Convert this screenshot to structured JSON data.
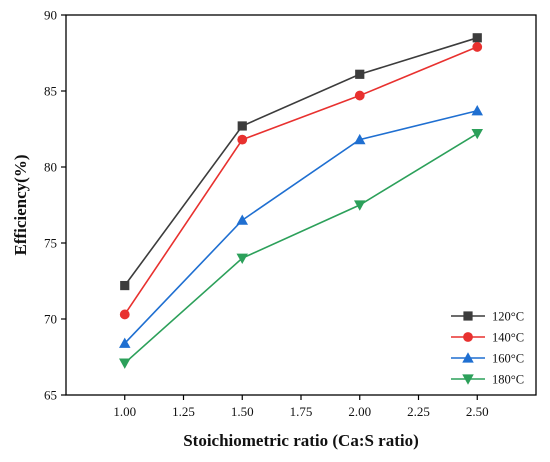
{
  "chart_data": {
    "type": "line",
    "title": "",
    "xlabel": "Stoichiometric ratio (Ca:S ratio)",
    "ylabel": "Efficiency(%)",
    "xlim": [
      0.75,
      2.75
    ],
    "ylim": [
      65,
      90
    ],
    "xticks": [
      1.0,
      1.25,
      1.5,
      1.75,
      2.0,
      2.25,
      2.5
    ],
    "xtick_labels": [
      "1.00",
      "1.25",
      "1.50",
      "1.75",
      "2.00",
      "2.25",
      "2.50"
    ],
    "yticks": [
      65,
      70,
      75,
      80,
      85,
      90
    ],
    "ytick_labels": [
      "65",
      "70",
      "75",
      "80",
      "85",
      "90"
    ],
    "grid": false,
    "legend_position": "bottom-right",
    "x": [
      1.0,
      1.5,
      2.0,
      2.5
    ],
    "series": [
      {
        "name": "120°C",
        "marker": "square",
        "color": "#3c3c3c",
        "values": [
          72.2,
          82.7,
          86.1,
          88.5
        ]
      },
      {
        "name": "140°C",
        "marker": "circle",
        "color": "#e8312f",
        "values": [
          70.3,
          81.8,
          84.7,
          87.9
        ]
      },
      {
        "name": "160°C",
        "marker": "triangle-up",
        "color": "#1f6fd1",
        "values": [
          68.4,
          76.5,
          81.8,
          83.7
        ]
      },
      {
        "name": "180°C",
        "marker": "triangle-down",
        "color": "#2ca05a",
        "values": [
          67.1,
          74.0,
          77.5,
          82.2
        ]
      }
    ]
  }
}
